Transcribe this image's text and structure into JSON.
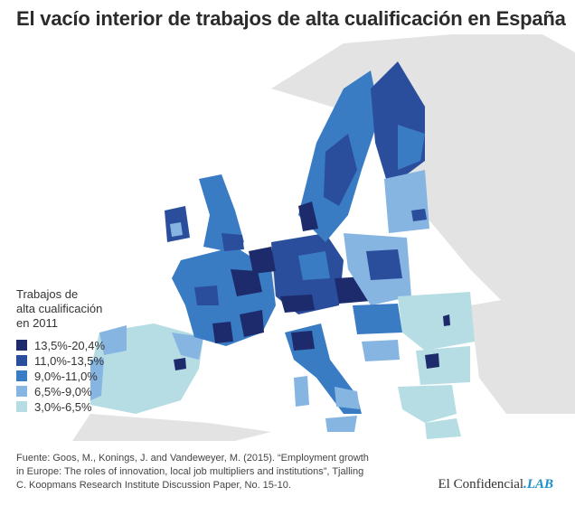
{
  "title": "El vacío interior de trabajos de alta cualificación en España",
  "legend": {
    "title_lines": [
      "Trabajos de",
      "alta cualificación",
      "en 2011"
    ],
    "items": [
      {
        "label": "13,5%-20,4%",
        "color": "#1d2a6b"
      },
      {
        "label": "11,0%-13,5%",
        "color": "#2a4d9c"
      },
      {
        "label": "9,0%-11,0%",
        "color": "#3a7cc4"
      },
      {
        "label": "6,5%-9,0%",
        "color": "#86b5e2"
      },
      {
        "label": "3,0%-6,5%",
        "color": "#b6dde4"
      }
    ]
  },
  "map_colors": {
    "land_outside": "#e3e3e3",
    "sea": "#ffffff"
  },
  "source_lines": [
    "Fuente: Goos, M., Konings, J. and Vandeweyer, M. (2015). “Employment growth",
    "in Europe: The roles of innovation, local job multipliers and institutions”, Tjalling",
    "C. Koopmans Research Institute Discussion Paper, No. 15-10."
  ],
  "brand": {
    "main": "El Confidencial",
    "suffix": ".LAB"
  }
}
